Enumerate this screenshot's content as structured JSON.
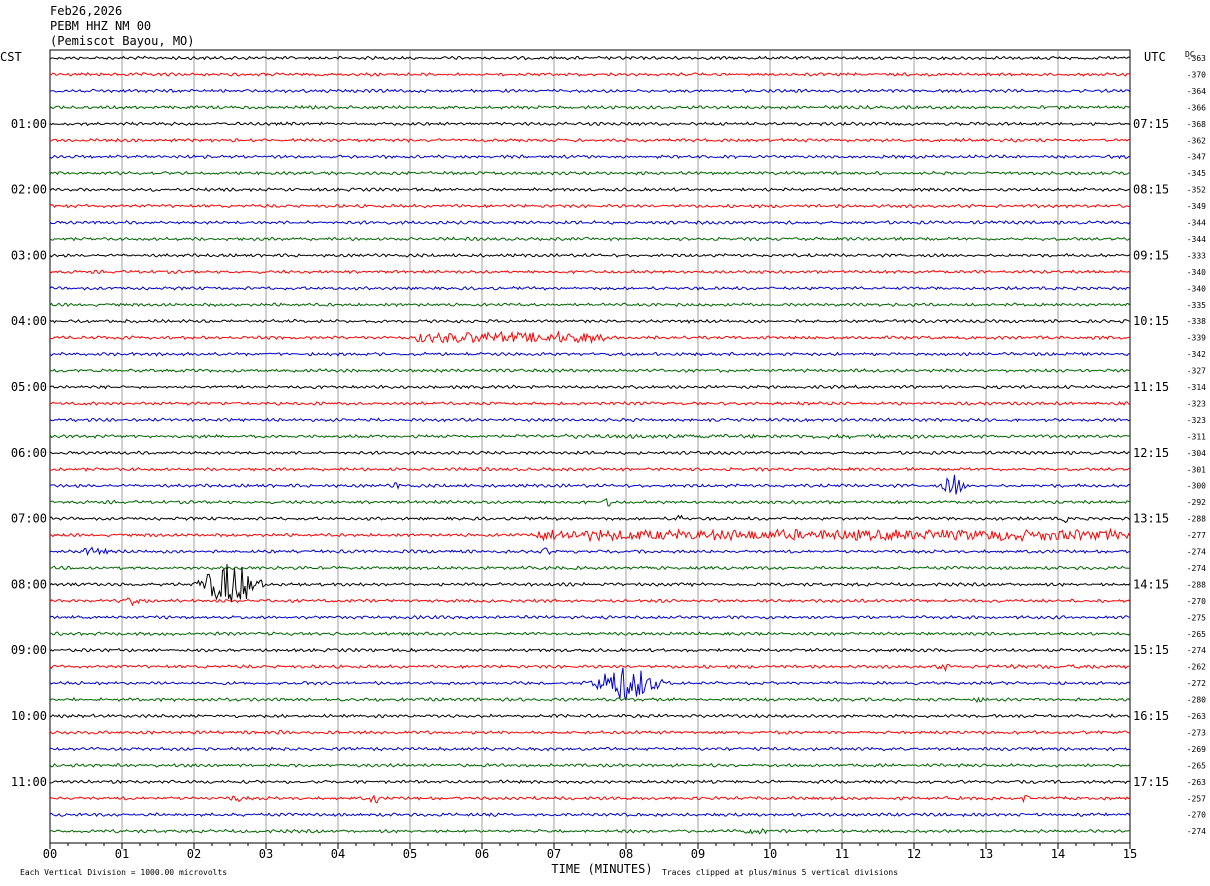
{
  "header": {
    "date": "Feb26,2026",
    "station": "PEBM HHZ NM 00",
    "location": "(Pemiscot Bayou, MO)"
  },
  "labels": {
    "left_tz": "CST",
    "right_tz": "UTC",
    "dc": "DC",
    "xlabel": "TIME (MINUTES)",
    "scale_note": "Each Vertical Division = 1000.00 microvolts",
    "clip_note": "Traces clipped at plus/minus 5 vertical divisions"
  },
  "colors": {
    "trace_cycle": [
      "#000000",
      "#ff0000",
      "#0000cc",
      "#006600"
    ],
    "grid": "#888888"
  },
  "chart_data": {
    "type": "line",
    "title": "",
    "xlabel": "TIME (MINUTES)",
    "xlim": [
      0,
      15
    ],
    "x_ticks": [
      "00",
      "01",
      "02",
      "03",
      "04",
      "05",
      "06",
      "07",
      "08",
      "09",
      "10",
      "11",
      "12",
      "13",
      "14",
      "15"
    ],
    "left_hour_labels": [
      "01:00",
      "02:00",
      "03:00",
      "04:00",
      "05:00",
      "06:00",
      "07:00",
      "08:00",
      "09:00",
      "10:00",
      "11:00"
    ],
    "right_hour_labels": [
      "07:15",
      "08:15",
      "09:15",
      "10:15",
      "11:15",
      "12:15",
      "13:15",
      "14:15",
      "15:15",
      "16:15",
      "17:15"
    ],
    "traces_per_hour": 4,
    "dc_offsets": [
      -363,
      -370,
      -364,
      -366,
      -368,
      -362,
      -347,
      -345,
      -352,
      -349,
      -344,
      -344,
      -333,
      -340,
      -340,
      -335,
      -338,
      -339,
      -342,
      -327,
      -314,
      -323,
      -323,
      -311,
      -304,
      -301,
      -300,
      -292,
      -288,
      -277,
      -274,
      -274,
      -288,
      -270,
      -275,
      -265,
      -274,
      -262,
      -272,
      -280,
      -263,
      -273,
      -269,
      -265,
      -263,
      -257,
      -270,
      -274
    ],
    "events": [
      {
        "trace": 17,
        "minute": 6.4,
        "width_min": 2.6,
        "amp": 6,
        "shape": "band"
      },
      {
        "trace": 21,
        "minute": 0.5,
        "width_min": 0.3,
        "amp": 2,
        "shape": "burst"
      },
      {
        "trace": 23,
        "minute": 9.5,
        "width_min": 5.0,
        "amp": 2,
        "shape": "band"
      },
      {
        "trace": 26,
        "minute": 12.55,
        "width_min": 0.4,
        "amp": 11,
        "shape": "burst"
      },
      {
        "trace": 26,
        "minute": 4.8,
        "width_min": 0.2,
        "amp": 4,
        "shape": "burst"
      },
      {
        "trace": 27,
        "minute": 7.75,
        "width_min": 0.2,
        "amp": 5,
        "shape": "burst"
      },
      {
        "trace": 28,
        "minute": 8.75,
        "width_min": 0.2,
        "amp": 5,
        "shape": "burst"
      },
      {
        "trace": 28,
        "minute": 14.1,
        "width_min": 0.15,
        "amp": 4,
        "shape": "burst"
      },
      {
        "trace": 29,
        "minute": 11.0,
        "width_min": 8.5,
        "amp": 6,
        "shape": "band"
      },
      {
        "trace": 29,
        "minute": 1.5,
        "width_min": 0.3,
        "amp": 2,
        "shape": "burst"
      },
      {
        "trace": 30,
        "minute": 0.6,
        "width_min": 0.6,
        "amp": 4,
        "shape": "burst"
      },
      {
        "trace": 30,
        "minute": 6.9,
        "width_min": 0.2,
        "amp": 4,
        "shape": "burst"
      },
      {
        "trace": 32,
        "minute": 2.5,
        "width_min": 1.0,
        "amp": 22,
        "shape": "burst"
      },
      {
        "trace": 33,
        "minute": 1.15,
        "width_min": 0.3,
        "amp": 5,
        "shape": "burst"
      },
      {
        "trace": 37,
        "minute": 12.4,
        "width_min": 0.3,
        "amp": 4,
        "shape": "burst"
      },
      {
        "trace": 37,
        "minute": 14.0,
        "width_min": 2.0,
        "amp": 2,
        "shape": "band"
      },
      {
        "trace": 38,
        "minute": 8.0,
        "width_min": 1.1,
        "amp": 18,
        "shape": "burst"
      },
      {
        "trace": 39,
        "minute": 12.9,
        "width_min": 0.3,
        "amp": 3,
        "shape": "burst"
      },
      {
        "trace": 41,
        "minute": 3.2,
        "width_min": 0.3,
        "amp": 2,
        "shape": "burst"
      },
      {
        "trace": 42,
        "minute": 6.05,
        "width_min": 0.3,
        "amp": 2,
        "shape": "burst"
      },
      {
        "trace": 45,
        "minute": 4.5,
        "width_min": 0.2,
        "amp": 6,
        "shape": "burst"
      },
      {
        "trace": 45,
        "minute": 13.55,
        "width_min": 0.15,
        "amp": 6,
        "shape": "burst"
      },
      {
        "trace": 45,
        "minute": 2.6,
        "width_min": 0.4,
        "amp": 3,
        "shape": "burst"
      },
      {
        "trace": 47,
        "minute": 9.8,
        "width_min": 0.6,
        "amp": 3,
        "shape": "burst"
      }
    ]
  }
}
